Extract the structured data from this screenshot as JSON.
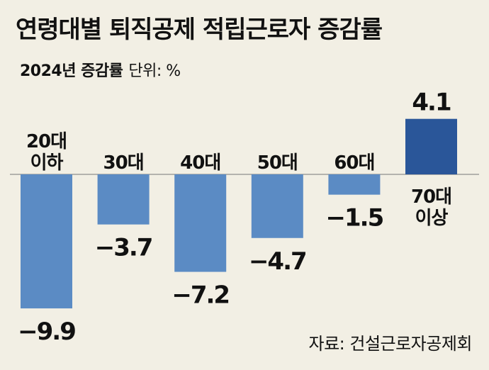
{
  "header": {
    "title": "연령대별 퇴직공제 적립근로자 증감률",
    "subtitle": "2024년 증감률",
    "unit": "단위: %"
  },
  "footer": {
    "source": "자료: 건설근로자공제회"
  },
  "colors": {
    "background": "#f2efe4",
    "negative_bar": "#5b8bc4",
    "positive_bar": "#2a5699",
    "text": "#111111"
  },
  "chart_data": {
    "type": "bar",
    "categories": [
      "20대\n이하",
      "30대",
      "40대",
      "50대",
      "60대",
      "70대\n이상"
    ],
    "values": [
      -9.9,
      -3.7,
      -7.2,
      -4.7,
      -1.5,
      4.1
    ],
    "value_labels": [
      "-9.9",
      "-3.7",
      "-7.2",
      "-4.7",
      "-1.5",
      "4.1"
    ],
    "title": "연령대별 퇴직공제 적립근로자 증감률",
    "subtitle": "2024년 증감률",
    "xlabel": "",
    "ylabel": "",
    "unit": "%",
    "ylim": [
      -9.9,
      4.1
    ],
    "grid": false,
    "legend": "none"
  }
}
